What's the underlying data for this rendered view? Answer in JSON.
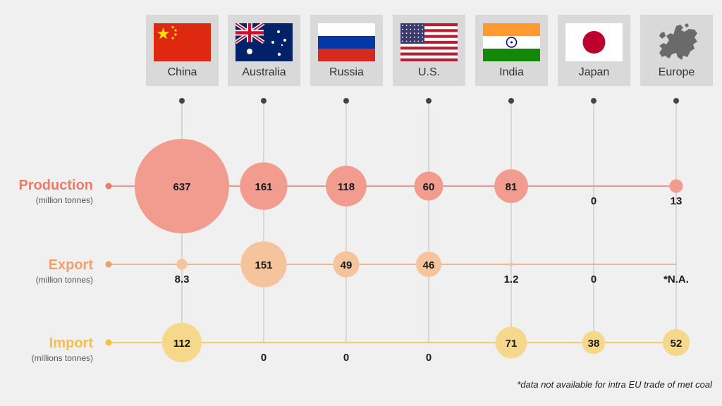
{
  "chart_data": {
    "type": "bubble-matrix",
    "columns": [
      "China",
      "Australia",
      "Russia",
      "U.S.",
      "India",
      "Japan",
      "Europe"
    ],
    "rows": [
      {
        "key": "production",
        "label": "Production",
        "unit": "(million tonnes)",
        "color": "#f0796a",
        "bubble": "#f29c8f",
        "values": [
          637,
          161,
          118,
          60,
          81,
          0,
          13
        ],
        "display": [
          "637",
          "161",
          "118",
          "60",
          "81",
          "0",
          "13"
        ]
      },
      {
        "key": "export",
        "label": "Export",
        "unit": "(million tonnes)",
        "color": "#f2a06a",
        "bubble": "#f5c49c",
        "values": [
          8.3,
          151,
          49,
          46,
          1.2,
          0,
          null
        ],
        "display": [
          "8.3",
          "151",
          "49",
          "46",
          "1.2",
          "0",
          "*N.A."
        ]
      },
      {
        "key": "import",
        "label": "Import",
        "unit": "(millions tonnes)",
        "color": "#f5c046",
        "bubble": "#f6d88c",
        "values": [
          112,
          0,
          0,
          0,
          71,
          38,
          52
        ],
        "display": [
          "112",
          "0",
          "0",
          "0",
          "71",
          "38",
          "52"
        ]
      }
    ]
  },
  "footnote": "*data not available for intra EU trade of met coal",
  "icons": [
    "china-flag-icon",
    "australia-flag-icon",
    "russia-flag-icon",
    "us-flag-icon",
    "india-flag-icon",
    "japan-flag-icon",
    "europe-map-icon"
  ]
}
